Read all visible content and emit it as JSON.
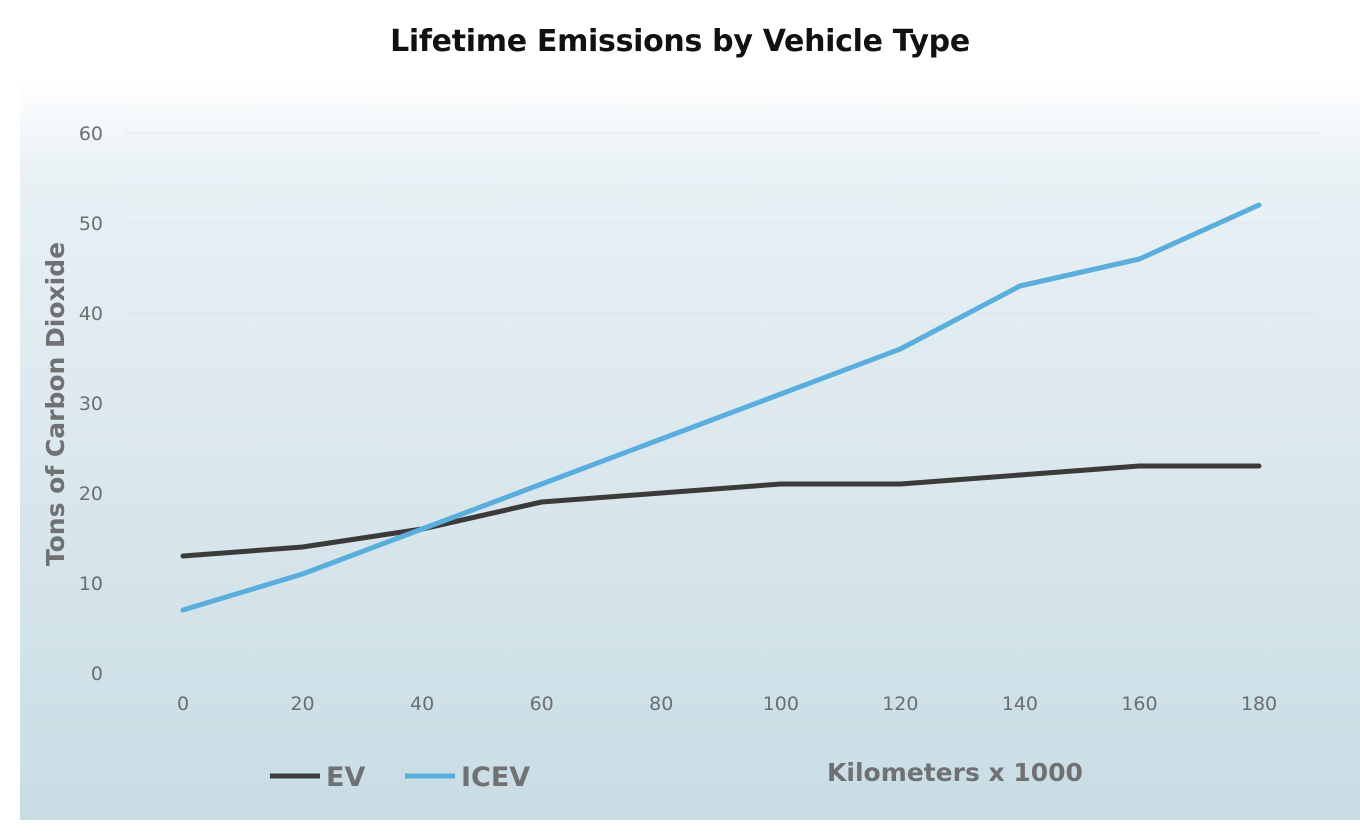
{
  "chart_data": {
    "type": "line",
    "title": "Lifetime Emissions by Vehicle Type",
    "xlabel": "Kilometers x 1000",
    "ylabel": "Tons of Carbon Dioxide",
    "x": [
      0,
      20,
      40,
      60,
      80,
      100,
      120,
      140,
      160,
      180
    ],
    "xlim": [
      0,
      180
    ],
    "ylim": [
      0,
      60
    ],
    "yticks": [
      0,
      10,
      20,
      30,
      40,
      50,
      60
    ],
    "grid": true,
    "legend_position": "bottom-left",
    "series": [
      {
        "name": "EV",
        "color": "#3b3b3b",
        "values": [
          13,
          14,
          16,
          19,
          20,
          21,
          21,
          22,
          23,
          23
        ]
      },
      {
        "name": "ICEV",
        "color": "#5aaedc",
        "values": [
          7,
          11,
          16,
          21,
          26,
          31,
          36,
          43,
          46,
          52
        ]
      }
    ]
  }
}
